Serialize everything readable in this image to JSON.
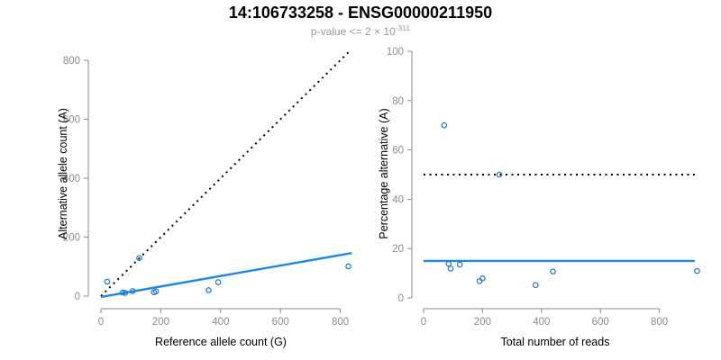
{
  "header": {
    "title": "14:106733258 - ENSG00000211950",
    "subtitle_text": "p-value <= 2 × 10",
    "subtitle_exponent": "-311"
  },
  "colors": {
    "point_blue": "#1e78c8",
    "line_blue": "#1e87e5",
    "axis_gray": "#8a8a8a",
    "tick_label_gray": "#8c8c8c",
    "axis_title_black": "#000000",
    "dotted_black": "#000000"
  },
  "chart_data": [
    {
      "type": "scatter",
      "panel": "left",
      "xlabel": "Reference allele count (G)",
      "ylabel": "Alternative allele count (A)",
      "xlim": [
        0,
        870
      ],
      "ylim": [
        0,
        830
      ],
      "xticks": [
        0,
        200,
        400,
        600,
        800
      ],
      "yticks": [
        0,
        200,
        400,
        600,
        800
      ],
      "grid": false,
      "legend_position": "none",
      "points": {
        "x": [
          21,
          73,
          81,
          106,
          128,
          177,
          184,
          360,
          392,
          827
        ],
        "y": [
          49,
          12,
          11,
          17,
          129,
          13,
          16,
          20,
          47,
          101
        ]
      },
      "lines": [
        {
          "name": "identity-line",
          "style": "dotted",
          "color": "#000000",
          "x": [
            0,
            832
          ],
          "y": [
            0,
            832
          ]
        },
        {
          "name": "fit-line",
          "style": "solid",
          "color": "#1e87e5",
          "x": [
            0,
            838
          ],
          "y": [
            -3,
            146
          ]
        }
      ]
    },
    {
      "type": "scatter",
      "panel": "right",
      "xlabel": "Total number of reads",
      "ylabel": "Percentage alternative (A)",
      "xlim": [
        0,
        930
      ],
      "ylim": [
        0,
        100
      ],
      "xticks": [
        0,
        200,
        400,
        600,
        800
      ],
      "yticks": [
        0,
        20,
        40,
        60,
        80,
        100
      ],
      "grid": false,
      "legend_position": "none",
      "points": {
        "x": [
          70,
          85,
          92,
          123,
          190,
          200,
          257,
          380,
          439,
          928
        ],
        "y": [
          70,
          13.8,
          11.9,
          13.5,
          6.8,
          7.9,
          50,
          5.2,
          10.7,
          10.9
        ]
      },
      "lines": [
        {
          "name": "expected-50pct-line",
          "style": "dotted",
          "color": "#000000",
          "x": [
            0,
            920
          ],
          "y": [
            50,
            50
          ]
        },
        {
          "name": "mean-percentage-line",
          "style": "solid",
          "color": "#1e87e5",
          "x": [
            0,
            920
          ],
          "y": [
            15,
            15
          ]
        }
      ]
    }
  ]
}
